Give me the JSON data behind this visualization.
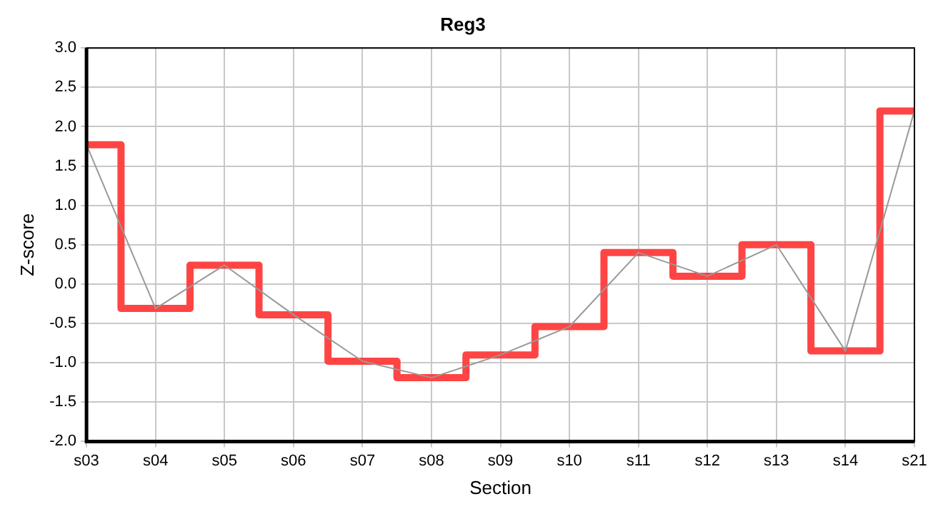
{
  "chart_data": {
    "type": "step",
    "title": "Reg3",
    "xlabel": "Section",
    "ylabel": "Z-score",
    "categories": [
      "s03",
      "s04",
      "s05",
      "s06",
      "s07",
      "s08",
      "s09",
      "s10",
      "s11",
      "s12",
      "s13",
      "s14",
      "s21"
    ],
    "series": [
      {
        "type": "step",
        "color": "#ff4444",
        "values": [
          1.77,
          -0.31,
          0.24,
          -0.39,
          -0.98,
          -1.19,
          -0.9,
          -0.54,
          0.4,
          0.1,
          0.5,
          -0.85,
          2.2
        ]
      },
      {
        "type": "line",
        "color": "#999999",
        "values": [
          1.77,
          -0.31,
          0.24,
          -0.39,
          -0.98,
          -1.19,
          -0.9,
          -0.54,
          0.4,
          0.1,
          0.5,
          -0.85,
          2.2
        ]
      }
    ],
    "ylim": [
      -2,
      3
    ],
    "yticks": [
      {
        "value": -2,
        "label": "-2.0"
      },
      -1.5,
      {
        "value": -1,
        "label": "-1.0"
      },
      -0.5,
      {
        "value": 0,
        "label": "0.0"
      },
      0.5,
      {
        "value": 1,
        "label": "1.0"
      },
      1.5,
      {
        "value": 2,
        "label": "2.0"
      },
      2.5,
      {
        "value": 3,
        "label": "3.0"
      }
    ],
    "grid": true,
    "legend": false,
    "marker": "none",
    "line_style": "solid"
  }
}
